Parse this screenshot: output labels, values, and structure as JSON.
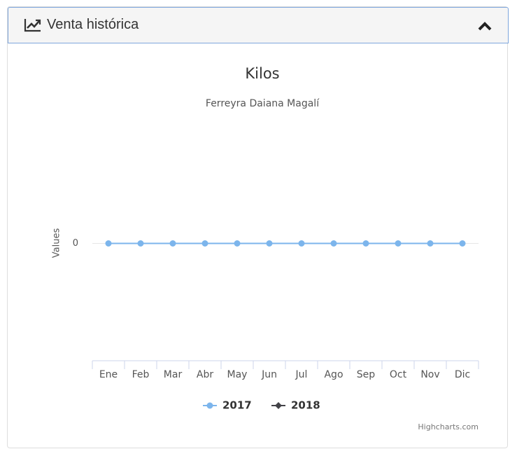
{
  "panel": {
    "title": "Venta histórica"
  },
  "chart_data": {
    "type": "line",
    "title": "Kilos",
    "subtitle": "Ferreyra Daiana Magalí",
    "y_label": "Values",
    "categories": [
      "Ene",
      "Feb",
      "Mar",
      "Abr",
      "May",
      "Jun",
      "Jul",
      "Ago",
      "Sep",
      "Oct",
      "Nov",
      "Dic"
    ],
    "series": [
      {
        "name": "2017",
        "color": "#7cb5ec",
        "values": [
          0,
          0,
          0,
          0,
          0,
          0,
          0,
          0,
          0,
          0,
          0,
          0
        ]
      },
      {
        "name": "2018",
        "color": "#434348",
        "values": [
          null,
          null,
          null,
          null,
          null,
          null,
          null,
          null,
          null,
          null,
          null,
          null
        ]
      }
    ],
    "ylim": [
      -1,
      1
    ],
    "yticks": [
      0
    ],
    "grid": true,
    "credits": "Highcharts.com"
  }
}
